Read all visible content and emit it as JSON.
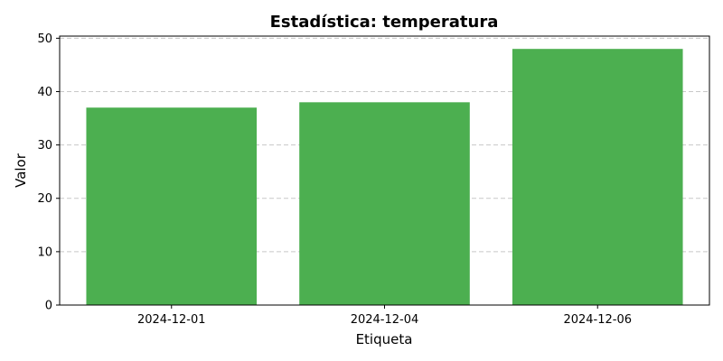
{
  "chart_data": {
    "type": "bar",
    "title": "Estadística: temperatura",
    "xlabel": "Etiqueta",
    "ylabel": "Valor",
    "categories": [
      "2024-12-01",
      "2024-12-04",
      "2024-12-06"
    ],
    "values": [
      37,
      38,
      48
    ],
    "ylim": [
      0,
      50.4
    ],
    "yticks": [
      0,
      10,
      20,
      30,
      40,
      50
    ],
    "grid": "y-dashed",
    "bar_color": "#4caf50"
  }
}
